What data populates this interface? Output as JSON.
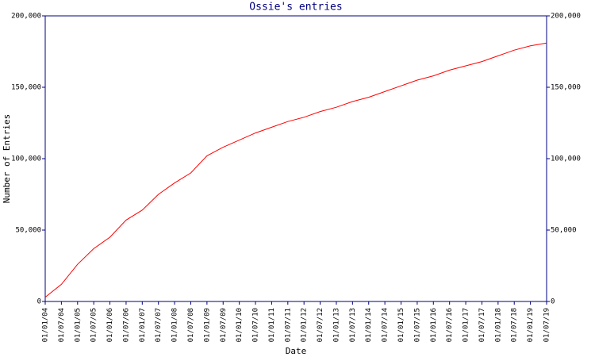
{
  "chart_data": {
    "type": "line",
    "title": "Ossie's entries",
    "xlabel": "Date",
    "ylabel": "Number of Entries",
    "categories": [
      "01/01/04",
      "01/07/04",
      "01/01/05",
      "01/07/05",
      "01/01/06",
      "01/07/06",
      "01/01/07",
      "01/07/07",
      "01/01/08",
      "01/07/08",
      "01/01/09",
      "01/07/09",
      "01/01/10",
      "01/07/10",
      "01/01/11",
      "01/07/11",
      "01/01/12",
      "01/07/12",
      "01/01/13",
      "01/07/13",
      "01/01/14",
      "01/07/14",
      "01/01/15",
      "01/07/15",
      "01/01/16",
      "01/07/16",
      "01/01/17",
      "01/07/17",
      "01/01/18",
      "01/07/18",
      "01/01/19",
      "01/07/19"
    ],
    "values": [
      3000,
      12000,
      26000,
      37000,
      45000,
      57000,
      64000,
      75000,
      83000,
      90000,
      102000,
      108000,
      113000,
      118000,
      122000,
      126000,
      129000,
      133000,
      136000,
      140000,
      143000,
      147000,
      151000,
      155000,
      158000,
      162000,
      165000,
      168000,
      172000,
      176000,
      179000,
      181000
    ],
    "color": "#ff0000",
    "ylim": [
      0,
      200000
    ],
    "yticks": [
      0,
      {
        "value": 50000,
        "label": "50,000"
      },
      {
        "value": 100000,
        "label": "100,000"
      },
      {
        "value": 150000,
        "label": "150,000"
      },
      {
        "value": 200000,
        "label": "200,000"
      }
    ]
  }
}
